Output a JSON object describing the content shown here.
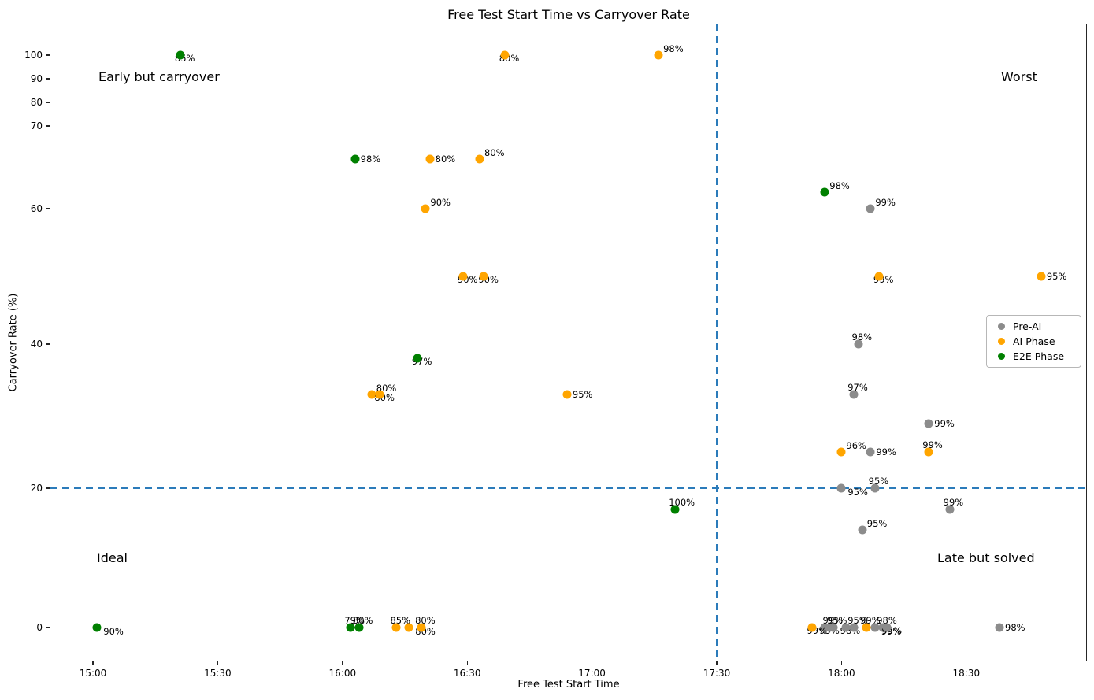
{
  "title": "Free Test Start Time vs Carryover Rate",
  "axes": {
    "x_label": "Free Test Start Time",
    "y_label": "Carryover Rate (%)",
    "x_ticks": [
      "15:00",
      "15:30",
      "16:00",
      "16:30",
      "17:00",
      "17:30",
      "18:00",
      "18:30"
    ],
    "y_ticks": [
      0,
      20,
      40,
      60,
      70,
      80,
      90,
      100
    ]
  },
  "quadrants": {
    "top_left": "Early but carryover",
    "top_right": "Worst",
    "bottom_left": "Ideal",
    "bottom_right": "Late but solved"
  },
  "legend": {
    "items": [
      {
        "label": "Pre-AI",
        "color": "#8c8c8c"
      },
      {
        "label": "AI Phase",
        "color": "#ffa500"
      },
      {
        "label": "E2E Phase",
        "color": "#008000"
      }
    ]
  },
  "thresholds": {
    "x_line_time": "17:30",
    "y_line_value": 20,
    "line_color": "#2b7bba",
    "line_style": "dashed"
  },
  "chart_data": {
    "type": "scatter",
    "title": "Free Test Start Time vs Carryover Rate",
    "xlabel": "Free Test Start Time",
    "ylabel": "Carryover Rate (%)",
    "x_range": [
      "14:49",
      "18:59"
    ],
    "y_tick_values": [
      0,
      20,
      40,
      60,
      70,
      80,
      90,
      100
    ],
    "grid": false,
    "legend_position": "center right",
    "series": [
      {
        "name": "Pre-AI",
        "color": "#8c8c8c",
        "points": [
          {
            "time": "18:07",
            "carryover": 60,
            "label": "99%",
            "pos": "ur"
          },
          {
            "time": "18:04",
            "carryover": 40,
            "label": "98%",
            "pos": "up"
          },
          {
            "time": "18:03",
            "carryover": 33,
            "label": "97%",
            "pos": "up"
          },
          {
            "time": "18:21",
            "carryover": 29,
            "label": "99%",
            "pos": "r"
          },
          {
            "time": "18:07",
            "carryover": 25,
            "label": "99%",
            "pos": "r"
          },
          {
            "time": "18:00",
            "carryover": 20,
            "label": "95%",
            "pos": "dr"
          },
          {
            "time": "18:08",
            "carryover": 20,
            "label": "95%",
            "pos": "up"
          },
          {
            "time": "18:26",
            "carryover": 17,
            "label": "99%",
            "pos": "up"
          },
          {
            "time": "18:05",
            "carryover": 14,
            "label": "95%",
            "pos": "ur"
          },
          {
            "time": "17:56",
            "carryover": 0,
            "label": "99%",
            "pos": "dl"
          },
          {
            "time": "17:57",
            "carryover": 0,
            "label": "99%",
            "pos": "up"
          },
          {
            "time": "17:58",
            "carryover": 0,
            "label": "95%",
            "pos": "up"
          },
          {
            "time": "18:01",
            "carryover": 0,
            "label": "98%",
            "pos": "dl"
          },
          {
            "time": "18:03",
            "carryover": 0,
            "label": "95%",
            "pos": "up"
          },
          {
            "time": "18:08",
            "carryover": 0,
            "label": "99%",
            "pos": "dr"
          },
          {
            "time": "18:10",
            "carryover": 0,
            "label": "98%",
            "pos": "up"
          },
          {
            "time": "18:11",
            "carryover": 0,
            "label": "95%",
            "pos": "dl"
          },
          {
            "time": "18:38",
            "carryover": 0,
            "label": "98%",
            "pos": "r"
          }
        ]
      },
      {
        "name": "AI Phase",
        "color": "#ffa500",
        "points": [
          {
            "time": "16:39",
            "carryover": 100,
            "label": "80%",
            "pos": "dl"
          },
          {
            "time": "17:16",
            "carryover": 100,
            "label": "98%",
            "pos": "ur"
          },
          {
            "time": "16:21",
            "carryover": 66,
            "label": "80%",
            "pos": "r"
          },
          {
            "time": "16:33",
            "carryover": 66,
            "label": "80%",
            "pos": "ur"
          },
          {
            "time": "16:20",
            "carryover": 60,
            "label": "90%",
            "pos": "ur"
          },
          {
            "time": "16:29",
            "carryover": 50,
            "label": "90%",
            "pos": "dl"
          },
          {
            "time": "16:34",
            "carryover": 50,
            "label": "90%",
            "pos": "dl"
          },
          {
            "time": "18:09",
            "carryover": 50,
            "label": "99%",
            "pos": "dl"
          },
          {
            "time": "18:48",
            "carryover": 50,
            "label": "95%",
            "pos": "r"
          },
          {
            "time": "16:07",
            "carryover": 33,
            "label": "80%",
            "pos": "ur"
          },
          {
            "time": "16:09",
            "carryover": 33,
            "label": "80%",
            "pos": "dl"
          },
          {
            "time": "16:54",
            "carryover": 33,
            "label": "95%",
            "pos": "r"
          },
          {
            "time": "18:00",
            "carryover": 25,
            "label": "96%",
            "pos": "ur"
          },
          {
            "time": "18:21",
            "carryover": 25,
            "label": "99%",
            "pos": "up"
          },
          {
            "time": "16:13",
            "carryover": 0,
            "label": "85%",
            "pos": "up"
          },
          {
            "time": "16:16",
            "carryover": 0,
            "label": "80%",
            "pos": "dr"
          },
          {
            "time": "16:19",
            "carryover": 0,
            "label": "80%",
            "pos": "up"
          },
          {
            "time": "17:53",
            "carryover": 0,
            "label": "99%",
            "pos": "dl"
          },
          {
            "time": "18:06",
            "carryover": 0,
            "label": "99%",
            "pos": "up"
          }
        ]
      },
      {
        "name": "E2E Phase",
        "color": "#008000",
        "points": [
          {
            "time": "15:21",
            "carryover": 100,
            "label": "85%",
            "pos": "dl"
          },
          {
            "time": "16:03",
            "carryover": 66,
            "label": "98%",
            "pos": "r"
          },
          {
            "time": "17:56",
            "carryover": 62,
            "label": "98%",
            "pos": "ur"
          },
          {
            "time": "16:18",
            "carryover": 38,
            "label": "97%",
            "pos": "dl"
          },
          {
            "time": "17:20",
            "carryover": 17,
            "label": "100%",
            "pos": "up"
          },
          {
            "time": "15:01",
            "carryover": 0,
            "label": "90%",
            "pos": "dr"
          },
          {
            "time": "16:02",
            "carryover": 0,
            "label": "79%",
            "pos": "up"
          },
          {
            "time": "16:04",
            "carryover": 0,
            "label": "80%",
            "pos": "up"
          }
        ]
      }
    ]
  }
}
